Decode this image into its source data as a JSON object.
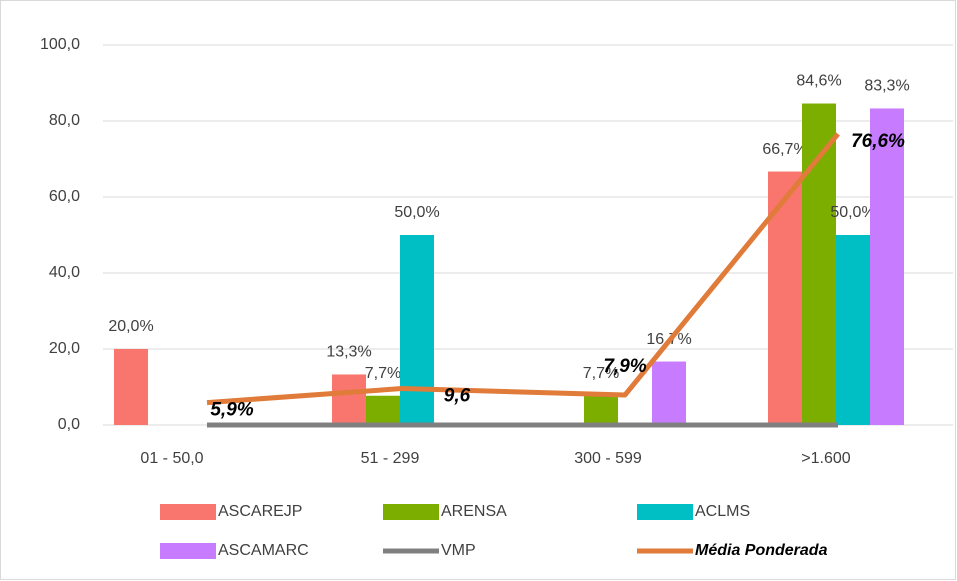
{
  "chart_data": {
    "type": "bar",
    "categories": [
      "01 - 50,0",
      "51 - 299",
      "300 - 599",
      ">1.600"
    ],
    "series": [
      {
        "name": "ASCAREJP",
        "color": "#f8766d",
        "values": [
          20.0,
          13.3,
          null,
          66.7
        ],
        "value_labels": [
          "20,0%",
          "13,3%",
          null,
          "66,7%"
        ]
      },
      {
        "name": "ARENSA",
        "color": "#7cae00",
        "values": [
          null,
          7.7,
          7.7,
          84.6
        ],
        "value_labels": [
          null,
          "7,7%",
          "7,7%",
          "84,6%"
        ]
      },
      {
        "name": "ACLMS",
        "color": "#00bfc4",
        "values": [
          null,
          50.0,
          null,
          50.0
        ],
        "value_labels": [
          null,
          "50,0%",
          null,
          "50,0%"
        ]
      },
      {
        "name": "ASCAMARC",
        "color": "#c77cff",
        "values": [
          null,
          null,
          16.7,
          83.3
        ],
        "value_labels": [
          null,
          null,
          "16,7%",
          "83,3%"
        ]
      },
      {
        "name": "VMP",
        "color": "#808080",
        "type": "line",
        "values": [
          0,
          0,
          0,
          0
        ]
      },
      {
        "name": "Média Ponderada",
        "color": "#e07b39",
        "type": "line",
        "values": [
          5.9,
          9.6,
          7.9,
          76.6
        ],
        "value_labels": [
          "5,9%",
          "9,6",
          "7,9%",
          "76,6%"
        ]
      }
    ],
    "ylim": [
      0,
      100
    ],
    "yticks": [
      {
        "value": 0,
        "label": "0,0"
      },
      {
        "value": 20,
        "label": "20,0"
      },
      {
        "value": 40,
        "label": "40,0"
      },
      {
        "value": 60,
        "label": "60,0"
      },
      {
        "value": 80,
        "label": "80,0"
      },
      {
        "value": 100,
        "label": "100,0"
      }
    ],
    "grid": true
  }
}
